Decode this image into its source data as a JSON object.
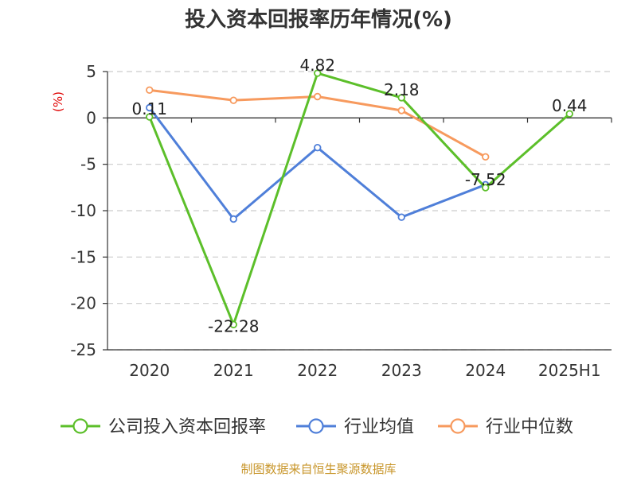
{
  "chart_data": {
    "type": "line",
    "title": "投入资本回报率历年情况(%)",
    "unit_label": "(%)",
    "categories": [
      "2020",
      "2021",
      "2022",
      "2023",
      "2024",
      "2025H1"
    ],
    "ylim": [
      -25,
      5
    ],
    "yticks": [
      5,
      0,
      -5,
      -10,
      -15,
      -20,
      -25
    ],
    "grid": true,
    "legend_position": "bottom",
    "series": [
      {
        "name": "公司投入资本回报率",
        "color": "#5cbf2a",
        "values": [
          0.11,
          -22.28,
          4.82,
          2.18,
          -7.52,
          0.44
        ],
        "labels": [
          "0.11",
          "-22.28",
          "4.82",
          "2.18",
          "-7.52",
          "0.44"
        ]
      },
      {
        "name": "行业均值",
        "color": "#4f7fd9",
        "values": [
          1.1,
          -10.9,
          -3.2,
          -10.7,
          -7.2,
          null
        ]
      },
      {
        "name": "行业中位数",
        "color": "#f79a5e",
        "values": [
          3.0,
          1.9,
          2.3,
          0.8,
          -4.2,
          null
        ]
      }
    ]
  },
  "source": "制图数据来自恒生聚源数据库"
}
